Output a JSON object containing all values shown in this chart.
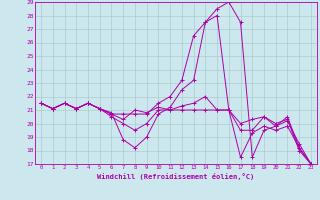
{
  "xlabel": "Windchill (Refroidissement éolien,°C)",
  "background_color": "#cce8ee",
  "grid_color": "#aacccc",
  "line_color": "#aa00aa",
  "hours": [
    0,
    1,
    2,
    3,
    4,
    5,
    6,
    7,
    8,
    9,
    10,
    11,
    12,
    13,
    14,
    15,
    16,
    17,
    18,
    19,
    20,
    21,
    22,
    23
  ],
  "ylim": [
    17,
    29
  ],
  "yticks": [
    17,
    18,
    19,
    20,
    21,
    22,
    23,
    24,
    25,
    26,
    27,
    28,
    29
  ],
  "series": [
    [
      21.5,
      21.1,
      21.5,
      21.1,
      21.5,
      21.1,
      20.7,
      20.7,
      20.7,
      20.7,
      21.5,
      22.0,
      23.2,
      26.5,
      27.5,
      28.5,
      29.0,
      27.5,
      17.5,
      19.5,
      19.8,
      20.5,
      18.2,
      17.0
    ],
    [
      21.5,
      21.1,
      21.5,
      21.1,
      21.5,
      21.1,
      20.5,
      20.0,
      19.5,
      20.0,
      21.0,
      21.0,
      21.3,
      21.5,
      22.0,
      21.0,
      21.0,
      17.5,
      19.3,
      19.8,
      19.5,
      19.8,
      18.2,
      17.0
    ],
    [
      21.5,
      21.1,
      21.5,
      21.1,
      21.5,
      21.1,
      20.7,
      20.3,
      21.0,
      20.8,
      21.2,
      21.0,
      21.0,
      21.0,
      21.0,
      21.0,
      21.0,
      20.0,
      20.3,
      20.5,
      20.0,
      20.3,
      18.0,
      17.0
    ],
    [
      21.5,
      21.1,
      21.5,
      21.1,
      21.5,
      21.1,
      20.8,
      18.8,
      18.2,
      19.0,
      20.7,
      21.2,
      22.5,
      23.2,
      27.5,
      28.0,
      21.0,
      19.5,
      19.5,
      20.5,
      19.8,
      20.2,
      18.5,
      17.0
    ]
  ]
}
